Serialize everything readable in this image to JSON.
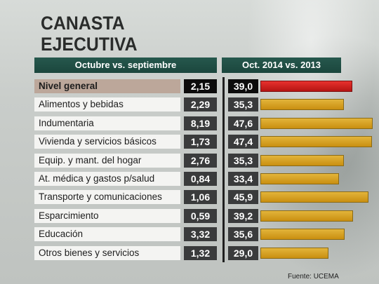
{
  "title_line1": "CANASTA",
  "title_line2": "EJECUTIVA",
  "header_left": "Octubre vs. septiembre",
  "header_right": "Oct. 2014 vs. 2013",
  "source": "Fuente: UCEMA",
  "colors": {
    "highlight_bar": "#d9231f",
    "bar": "#d9a020",
    "header_bg": "#1f4d43",
    "value_box": "#3a3b3c"
  },
  "chart_data": {
    "type": "bar",
    "orientation": "horizontal",
    "categories": [
      "Nivel general",
      "Alimentos y bebidas",
      "Indumentaria",
      "Vivienda y servicios básicos",
      "Equip. y mant. del hogar",
      "At. médica y gastos p/salud",
      "Transporte y comunicaciones",
      "Esparcimiento",
      "Educación",
      "Otros bienes y servicios"
    ],
    "series": [
      {
        "name": "Octubre vs. septiembre",
        "values": [
          "2,15",
          "2,29",
          "8,19",
          "1,73",
          "2,76",
          "0,84",
          "1,06",
          "0,59",
          "3,32",
          "1,32"
        ]
      },
      {
        "name": "Oct. 2014 vs. 2013",
        "values": [
          "39,0",
          "35,3",
          "47,6",
          "47,4",
          "35,3",
          "33,4",
          "45,9",
          "39,2",
          "35,6",
          "29,0"
        ],
        "bar_values": [
          39.0,
          35.3,
          47.6,
          47.4,
          35.3,
          33.4,
          45.9,
          39.2,
          35.6,
          29.0
        ]
      }
    ]
  }
}
